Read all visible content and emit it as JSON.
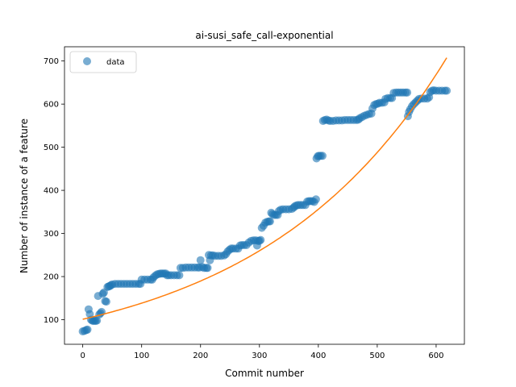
{
  "chart_data": {
    "type": "scatter",
    "title": "ai-susi_safe_call-exponential",
    "xlabel": "Commit number",
    "ylabel": "Number of instance of a feature",
    "xlim": [
      -31,
      648
    ],
    "ylim": [
      43,
      733
    ],
    "xticks": [
      0,
      100,
      200,
      300,
      400,
      500,
      600
    ],
    "yticks": [
      100,
      200,
      300,
      400,
      500,
      600,
      700
    ],
    "legend": {
      "position": "top-left",
      "entries": [
        "data"
      ]
    },
    "colors": {
      "data": "#1f77b4",
      "fit": "#ff7f0e"
    },
    "series": [
      {
        "name": "data",
        "kind": "scatter",
        "points": [
          [
            0,
            73
          ],
          [
            3,
            74
          ],
          [
            6,
            76
          ],
          [
            8,
            77
          ],
          [
            10,
            124
          ],
          [
            12,
            113
          ],
          [
            14,
            100
          ],
          [
            16,
            98
          ],
          [
            18,
            97
          ],
          [
            20,
            98
          ],
          [
            22,
            97
          ],
          [
            24,
            98
          ],
          [
            26,
            155
          ],
          [
            28,
            112
          ],
          [
            30,
            115
          ],
          [
            32,
            118
          ],
          [
            34,
            160
          ],
          [
            36,
            163
          ],
          [
            38,
            143
          ],
          [
            40,
            142
          ],
          [
            42,
            176
          ],
          [
            44,
            177
          ],
          [
            46,
            178
          ],
          [
            48,
            180
          ],
          [
            50,
            182
          ],
          [
            55,
            183
          ],
          [
            60,
            183
          ],
          [
            65,
            183
          ],
          [
            70,
            183
          ],
          [
            75,
            183
          ],
          [
            80,
            183
          ],
          [
            85,
            183
          ],
          [
            90,
            183
          ],
          [
            95,
            183
          ],
          [
            98,
            183
          ],
          [
            100,
            193
          ],
          [
            105,
            193
          ],
          [
            110,
            193
          ],
          [
            115,
            193
          ],
          [
            118,
            193
          ],
          [
            120,
            198
          ],
          [
            123,
            202
          ],
          [
            126,
            205
          ],
          [
            129,
            206
          ],
          [
            132,
            207
          ],
          [
            135,
            207
          ],
          [
            138,
            207
          ],
          [
            141,
            207
          ],
          [
            143,
            203
          ],
          [
            146,
            203
          ],
          [
            150,
            203
          ],
          [
            155,
            203
          ],
          [
            160,
            203
          ],
          [
            164,
            203
          ],
          [
            166,
            220
          ],
          [
            170,
            220
          ],
          [
            175,
            221
          ],
          [
            180,
            221
          ],
          [
            185,
            221
          ],
          [
            190,
            221
          ],
          [
            195,
            221
          ],
          [
            198,
            221
          ],
          [
            200,
            238
          ],
          [
            203,
            222
          ],
          [
            206,
            220
          ],
          [
            210,
            220
          ],
          [
            212,
            220
          ],
          [
            214,
            250
          ],
          [
            216,
            238
          ],
          [
            218,
            249
          ],
          [
            221,
            249
          ],
          [
            225,
            248
          ],
          [
            230,
            248
          ],
          [
            235,
            248
          ],
          [
            240,
            249
          ],
          [
            243,
            252
          ],
          [
            246,
            258
          ],
          [
            249,
            262
          ],
          [
            252,
            265
          ],
          [
            255,
            265
          ],
          [
            260,
            265
          ],
          [
            264,
            265
          ],
          [
            267,
            272
          ],
          [
            270,
            273
          ],
          [
            274,
            273
          ],
          [
            278,
            273
          ],
          [
            282,
            279
          ],
          [
            286,
            283
          ],
          [
            290,
            284
          ],
          [
            294,
            284
          ],
          [
            296,
            272
          ],
          [
            298,
            283
          ],
          [
            300,
            283
          ],
          [
            302,
            285
          ],
          [
            304,
            313
          ],
          [
            307,
            318
          ],
          [
            310,
            325
          ],
          [
            313,
            327
          ],
          [
            316,
            328
          ],
          [
            318,
            328
          ],
          [
            320,
            348
          ],
          [
            322,
            345
          ],
          [
            325,
            343
          ],
          [
            328,
            343
          ],
          [
            331,
            343
          ],
          [
            333,
            352
          ],
          [
            336,
            355
          ],
          [
            340,
            356
          ],
          [
            345,
            356
          ],
          [
            350,
            356
          ],
          [
            355,
            357
          ],
          [
            358,
            360
          ],
          [
            360,
            363
          ],
          [
            363,
            365
          ],
          [
            366,
            366
          ],
          [
            370,
            366
          ],
          [
            374,
            366
          ],
          [
            378,
            366
          ],
          [
            381,
            374
          ],
          [
            384,
            375
          ],
          [
            387,
            375
          ],
          [
            390,
            375
          ],
          [
            393,
            373
          ],
          [
            396,
            379
          ],
          [
            397,
            474
          ],
          [
            399,
            479
          ],
          [
            401,
            480
          ],
          [
            404,
            480
          ],
          [
            407,
            480
          ],
          [
            408,
            561
          ],
          [
            411,
            563
          ],
          [
            414,
            564
          ],
          [
            417,
            562
          ],
          [
            420,
            561
          ],
          [
            425,
            561
          ],
          [
            430,
            562
          ],
          [
            435,
            562
          ],
          [
            440,
            562
          ],
          [
            445,
            563
          ],
          [
            450,
            563
          ],
          [
            455,
            563
          ],
          [
            460,
            563
          ],
          [
            465,
            563
          ],
          [
            468,
            564
          ],
          [
            470,
            567
          ],
          [
            474,
            570
          ],
          [
            478,
            573
          ],
          [
            482,
            575
          ],
          [
            486,
            577
          ],
          [
            490,
            578
          ],
          [
            492,
            590
          ],
          [
            495,
            598
          ],
          [
            498,
            600
          ],
          [
            501,
            601
          ],
          [
            504,
            603
          ],
          [
            508,
            603
          ],
          [
            512,
            604
          ],
          [
            514,
            612
          ],
          [
            518,
            614
          ],
          [
            522,
            614
          ],
          [
            525,
            614
          ],
          [
            528,
            626
          ],
          [
            532,
            627
          ],
          [
            536,
            627
          ],
          [
            540,
            627
          ],
          [
            544,
            627
          ],
          [
            548,
            627
          ],
          [
            551,
            627
          ],
          [
            552,
            572
          ],
          [
            554,
            582
          ],
          [
            556,
            588
          ],
          [
            559,
            595
          ],
          [
            562,
            600
          ],
          [
            565,
            604
          ],
          [
            568,
            608
          ],
          [
            571,
            612
          ],
          [
            575,
            613
          ],
          [
            580,
            613
          ],
          [
            585,
            613
          ],
          [
            588,
            616
          ],
          [
            590,
            628
          ],
          [
            593,
            631
          ],
          [
            596,
            632
          ],
          [
            600,
            631
          ],
          [
            605,
            631
          ],
          [
            610,
            631
          ],
          [
            615,
            631
          ],
          [
            618,
            631
          ]
        ]
      },
      {
        "name": "",
        "kind": "line",
        "function": "exponential",
        "params": {
          "a": 101,
          "b": 0.00315
        },
        "x_range": [
          0,
          618
        ]
      }
    ]
  }
}
